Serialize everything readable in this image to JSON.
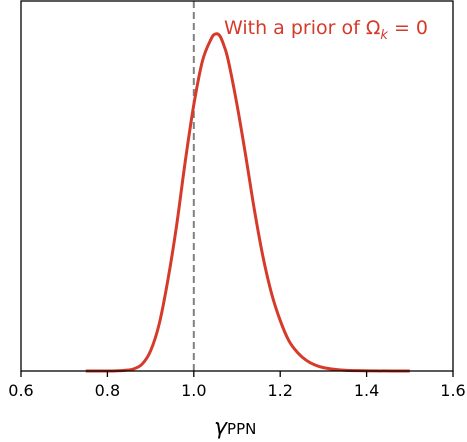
{
  "chart_data": {
    "type": "line",
    "xlabel": {
      "symbol": "γ",
      "subscript": "PPN"
    },
    "xlim": [
      0.6,
      1.6
    ],
    "xticks": [
      0.6,
      0.8,
      1.0,
      1.2,
      1.4,
      1.6
    ],
    "xtick_labels": [
      "0.6",
      "0.8",
      "1.0",
      "1.2",
      "1.4",
      "1.6"
    ],
    "ylim": [
      0,
      1.0
    ],
    "yticks_visible": false,
    "series": [
      {
        "name": "",
        "color": "#d63a2a",
        "x": [
          0.75,
          0.78,
          0.8,
          0.82,
          0.84,
          0.86,
          0.88,
          0.9,
          0.92,
          0.94,
          0.96,
          0.98,
          1.0,
          1.02,
          1.04,
          1.05,
          1.06,
          1.07,
          1.08,
          1.1,
          1.12,
          1.14,
          1.16,
          1.18,
          1.2,
          1.22,
          1.24,
          1.26,
          1.28,
          1.3,
          1.34,
          1.38,
          1.42,
          1.46,
          1.5
        ],
        "y": [
          0.0,
          0.0,
          0.0,
          0.0005,
          0.002,
          0.006,
          0.02,
          0.06,
          0.14,
          0.27,
          0.43,
          0.62,
          0.79,
          0.92,
          0.985,
          1.0,
          0.995,
          0.965,
          0.92,
          0.79,
          0.64,
          0.48,
          0.34,
          0.23,
          0.15,
          0.09,
          0.055,
          0.032,
          0.018,
          0.01,
          0.003,
          0.001,
          0.0003,
          0.0,
          0.0
        ]
      }
    ],
    "reference_lines": [
      {
        "orientation": "vertical",
        "x": 1.0,
        "style": "dashed",
        "color": "#808080"
      }
    ],
    "annotations": [
      {
        "text_prefix": "With a prior of Ω",
        "text_subscript": "k",
        "text_suffix": " = 0",
        "color": "#d63a2a"
      }
    ],
    "grid": false,
    "legend": "none"
  }
}
